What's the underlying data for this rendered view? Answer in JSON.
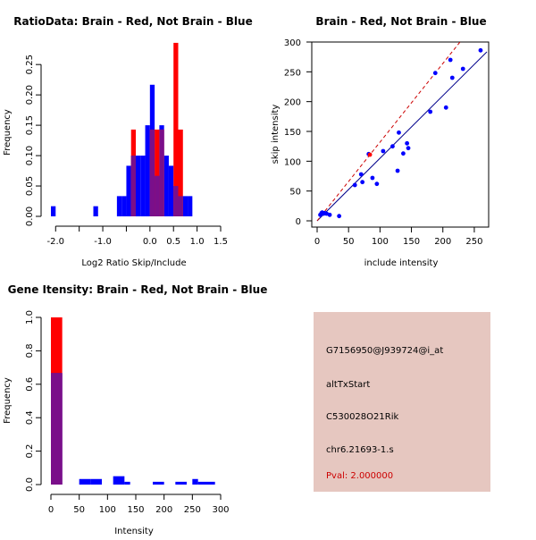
{
  "chart_data": [
    {
      "type": "bar",
      "title": "RatioData: Brain - Red, Not Brain - Blue",
      "xlabel": "Log2 Ratio Skip/Include",
      "ylabel": "Frequency",
      "xlim": [
        -2.1,
        1.5
      ],
      "ylim": [
        0,
        0.29
      ],
      "xticks": [
        -2.0,
        -1.5,
        -1.0,
        -0.5,
        0.0,
        0.5,
        1.0,
        1.5
      ],
      "xtick_labels": [
        "-2.0",
        "",
        "-1.0",
        "",
        "0.0",
        "0.5",
        "1.0",
        "1.5"
      ],
      "yticks": [
        0.0,
        0.05,
        0.1,
        0.15,
        0.2,
        0.25
      ],
      "ytick_labels": [
        "0.00",
        "0.05",
        "0.10",
        "0.15",
        "0.20",
        "0.25"
      ],
      "series": [
        {
          "name": "Not Brain",
          "color": "#0000ff",
          "bins": [
            [
              -2.1,
              -2.0,
              0.0167
            ],
            [
              -1.2,
              -1.1,
              0.0167
            ],
            [
              -0.7,
              -0.6,
              0.0333
            ],
            [
              -0.6,
              -0.5,
              0.0333
            ],
            [
              -0.5,
              -0.4,
              0.0833
            ],
            [
              -0.4,
              -0.3,
              0.1
            ],
            [
              -0.3,
              -0.2,
              0.1
            ],
            [
              -0.2,
              -0.1,
              0.1
            ],
            [
              -0.1,
              0.0,
              0.15
            ],
            [
              0.0,
              0.1,
              0.2167
            ],
            [
              0.1,
              0.2,
              0.0667
            ],
            [
              0.2,
              0.3,
              0.15
            ],
            [
              0.3,
              0.4,
              0.1
            ],
            [
              0.4,
              0.5,
              0.0833
            ],
            [
              0.5,
              0.6,
              0.05
            ],
            [
              0.6,
              0.7,
              0.0333
            ],
            [
              0.7,
              0.8,
              0.0333
            ],
            [
              0.8,
              0.9,
              0.0333
            ]
          ]
        },
        {
          "name": "Brain",
          "color": "#ff0000",
          "bins": [
            [
              -0.4,
              -0.3,
              0.1429
            ],
            [
              0.0,
              0.1,
              0.1429
            ],
            [
              0.1,
              0.2,
              0.1429
            ],
            [
              0.2,
              0.3,
              0.1429
            ],
            [
              0.5,
              0.6,
              0.2857
            ],
            [
              0.6,
              0.7,
              0.1429
            ]
          ]
        }
      ]
    },
    {
      "type": "scatter",
      "title": "Brain - Red, Not Brain - Blue",
      "xlabel": "include intensity",
      "ylabel": "skip intensity",
      "xlim": [
        0,
        270
      ],
      "ylim": [
        0,
        300
      ],
      "xticks": [
        0,
        50,
        100,
        150,
        200,
        250
      ],
      "yticks": [
        0,
        50,
        100,
        150,
        200,
        250,
        300
      ],
      "points": {
        "Not Brain": [
          [
            5,
            10
          ],
          [
            7,
            13
          ],
          [
            8,
            14
          ],
          [
            10,
            12
          ],
          [
            12,
            13
          ],
          [
            15,
            12
          ],
          [
            20,
            10
          ],
          [
            35,
            8
          ],
          [
            60,
            60
          ],
          [
            70,
            78
          ],
          [
            72,
            65
          ],
          [
            82,
            112
          ],
          [
            88,
            72
          ],
          [
            95,
            62
          ],
          [
            105,
            117
          ],
          [
            120,
            125
          ],
          [
            128,
            84
          ],
          [
            130,
            148
          ],
          [
            137,
            113
          ],
          [
            143,
            130
          ],
          [
            145,
            122
          ],
          [
            180,
            183
          ],
          [
            188,
            248
          ],
          [
            205,
            190
          ],
          [
            212,
            270
          ],
          [
            215,
            240
          ],
          [
            232,
            255
          ],
          [
            260,
            286
          ]
        ],
        "Brain": [
          [
            84,
            111
          ]
        ]
      },
      "fit_lines": [
        {
          "name": "Not Brain",
          "color": "#00008b",
          "dash": "solid",
          "intercept": 0,
          "slope": 1.05
        },
        {
          "name": "Brain",
          "color": "#cc0000",
          "dash": "dashed",
          "intercept": 0,
          "slope": 1.32
        }
      ]
    },
    {
      "type": "bar",
      "title": "Gene Itensity: Brain - Red, Not Brain - Blue",
      "xlabel": "Intensity",
      "ylabel": "Frequency",
      "xlim": [
        0,
        300
      ],
      "ylim": [
        0,
        1.0
      ],
      "xticks": [
        0,
        50,
        100,
        150,
        200,
        250,
        300
      ],
      "yticks": [
        0.0,
        0.2,
        0.4,
        0.6,
        0.8,
        1.0
      ],
      "ytick_labels": [
        "0.0",
        "0.2",
        "0.4",
        "0.6",
        "0.8",
        "1.0"
      ],
      "series": [
        {
          "name": "Not Brain",
          "color": "#0000ff",
          "bins": [
            [
              0,
              20,
              0.6667
            ],
            [
              50,
              70,
              0.0333
            ],
            [
              70,
              90,
              0.0333
            ],
            [
              110,
              130,
              0.05
            ],
            [
              130,
              140,
              0.0167
            ],
            [
              180,
              200,
              0.0167
            ],
            [
              220,
              240,
              0.0167
            ],
            [
              250,
              260,
              0.0333
            ],
            [
              260,
              290,
              0.0167
            ]
          ]
        },
        {
          "name": "Brain",
          "color": "#ff0000",
          "bins": [
            [
              0,
              20,
              1.0
            ]
          ]
        }
      ]
    }
  ],
  "info_panel": {
    "probe_id": "G7156950@J939724@i_at",
    "event_type": "altTxStart",
    "gene": "C530028O21Rik",
    "locus": "chr6.21693-1.s",
    "pval": "Pval: 2.000000",
    "background": "#e6c7c0",
    "pval_color": "#cc0000"
  }
}
